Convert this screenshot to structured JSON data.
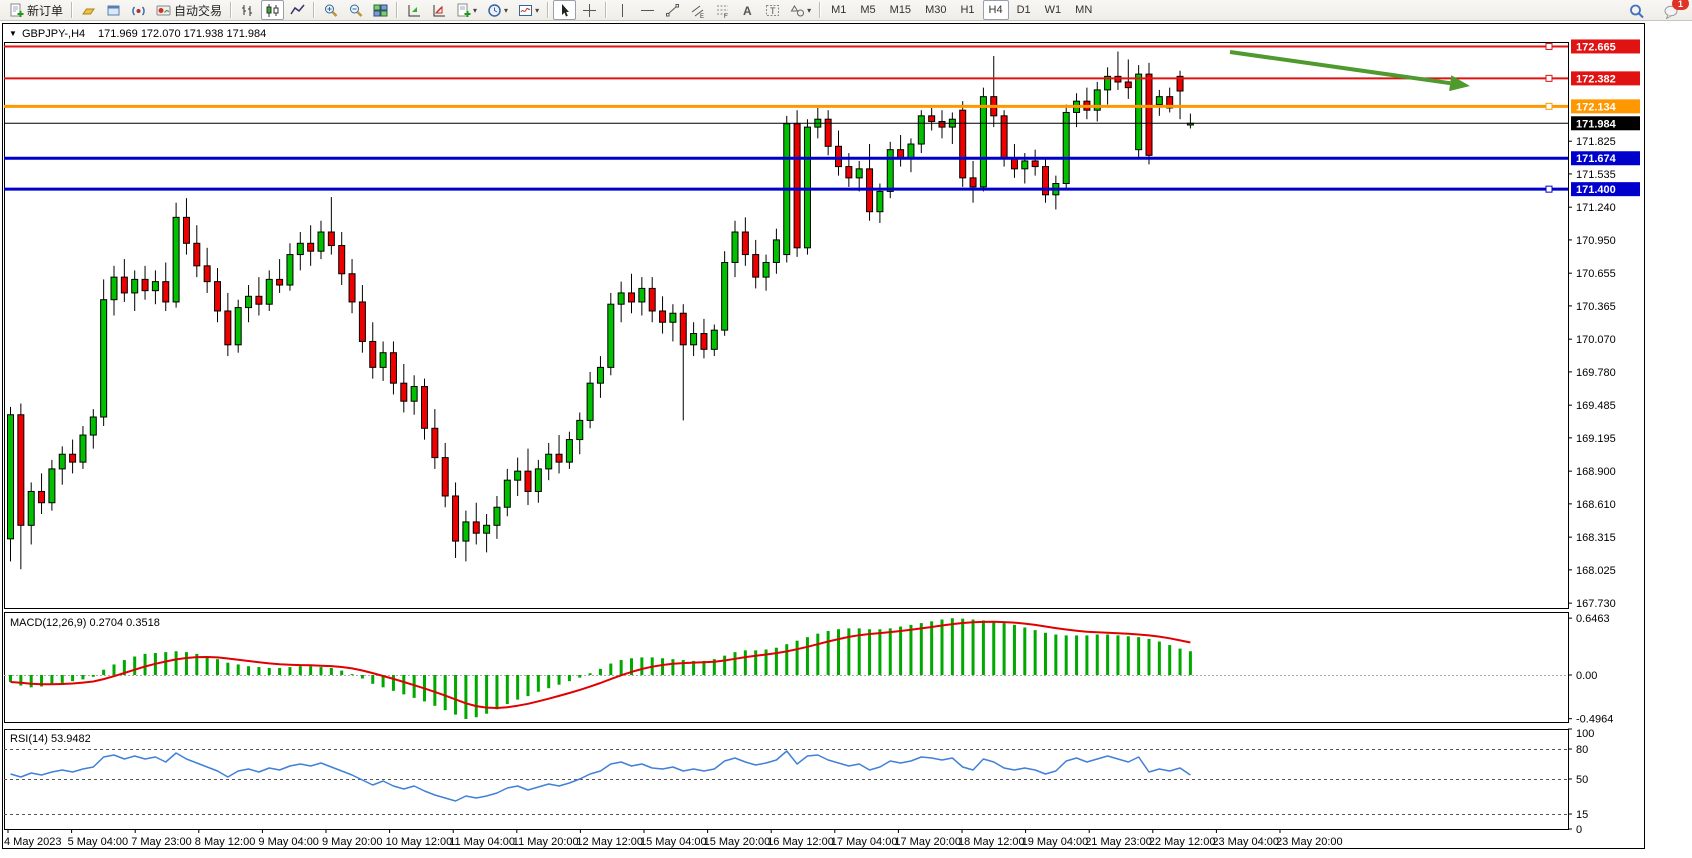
{
  "toolbar": {
    "groups": [
      [
        {
          "icon": "new-order",
          "label": "新订单"
        }
      ],
      [
        {
          "icon": "market-watch"
        },
        {
          "icon": "data-window"
        },
        {
          "icon": "navigator"
        },
        {
          "icon": "autotrade",
          "label": "自动交易"
        }
      ],
      [
        {
          "icon": "bar-chart"
        },
        {
          "icon": "candle-chart",
          "active": true
        },
        {
          "icon": "line-chart"
        }
      ],
      [
        {
          "icon": "zoom-in"
        },
        {
          "icon": "zoom-out"
        },
        {
          "icon": "tile-windows"
        }
      ],
      [
        {
          "icon": "indicator-add"
        },
        {
          "icon": "indicator-remove"
        },
        {
          "icon": "template-new",
          "dd": true
        },
        {
          "icon": "period",
          "dd": true
        },
        {
          "icon": "template",
          "dd": true
        }
      ],
      [
        {
          "icon": "cursor",
          "active": true
        },
        {
          "icon": "crosshair"
        }
      ],
      [
        {
          "icon": "vline"
        },
        {
          "icon": "hline"
        },
        {
          "icon": "trendline"
        },
        {
          "icon": "channel"
        },
        {
          "icon": "fibonacci"
        },
        {
          "icon": "text"
        },
        {
          "icon": "text-label"
        },
        {
          "icon": "shapes",
          "dd": true
        }
      ],
      [
        {
          "tf": "M1"
        },
        {
          "tf": "M5"
        },
        {
          "tf": "M15"
        },
        {
          "tf": "M30"
        },
        {
          "tf": "H1"
        },
        {
          "tf": "H4",
          "active": true
        },
        {
          "tf": "D1"
        },
        {
          "tf": "W1"
        },
        {
          "tf": "MN"
        }
      ]
    ],
    "right": [
      {
        "icon": "search"
      },
      {
        "icon": "chat",
        "badge": "1"
      }
    ]
  },
  "window": {
    "symbol_period": "GBPJPY-,H4",
    "ohlc_text": "171.969 172.070 171.938 171.984"
  },
  "macd_panel": {
    "label": "MACD(12,26,9) 0.2704 0.3518",
    "axis": [
      0.6463,
      0,
      -0.4964
    ],
    "axis_labels": [
      "0.6463",
      "0.00",
      "-0.4964"
    ]
  },
  "rsi_panel": {
    "label": "RSI(14) 53.9482",
    "axis": [
      100,
      80,
      50,
      15,
      0
    ],
    "dashed": [
      80,
      50,
      15
    ]
  },
  "price_axis_ticks": [
    "171.825",
    "171.535",
    "171.240",
    "170.950",
    "170.655",
    "170.365",
    "170.070",
    "169.780",
    "169.485",
    "169.195",
    "168.900",
    "168.610",
    "168.315",
    "168.025",
    "167.730"
  ],
  "time_axis_labels": [
    "4 May 2023",
    "5 May 04:00",
    "7 May 23:00",
    "8 May 12:00",
    "9 May 04:00",
    "9 May 20:00",
    "10 May 12:00",
    "11 May 04:00",
    "11 May 20:00",
    "12 May 12:00",
    "15 May 04:00",
    "15 May 20:00",
    "16 May 12:00",
    "17 May 04:00",
    "17 May 20:00",
    "18 May 12:00",
    "19 May 04:00",
    "21 May 23:00",
    "22 May 12:00",
    "23 May 04:00",
    "23 May 20:00"
  ],
  "levels": [
    {
      "price": 172.665,
      "label": "172.665",
      "color": "#e01212",
      "width": 2,
      "handle": true
    },
    {
      "price": 172.382,
      "label": "172.382",
      "color": "#e01212",
      "width": 2,
      "handle": true
    },
    {
      "price": 172.134,
      "label": "172.134",
      "color": "#ff9800",
      "width": 3,
      "handle": true
    },
    {
      "price": 171.674,
      "label": "171.674",
      "color": "#0000cc",
      "width": 3,
      "handle": false
    },
    {
      "price": 171.4,
      "label": "171.400",
      "color": "#0000cc",
      "width": 3,
      "handle": true
    }
  ],
  "current_price": {
    "value": 171.984,
    "label": "171.984",
    "color": "#000000"
  },
  "annotation_arrow": {
    "from": [
      1230,
      52
    ],
    "to": [
      1470,
      86
    ],
    "color": "#4e9a2e"
  },
  "colors": {
    "up": "#00c000",
    "down": "#ee0000",
    "wick": "#000000",
    "macd_hist": "#00a800",
    "macd_signal": "#e00000",
    "rsi_line": "#4080d8"
  },
  "chart_data": {
    "type": "candlestick",
    "symbol": "GBPJPY-",
    "period": "H4",
    "title": "GBPJPY-,H4 171.969 172.070 171.938 171.984",
    "last_ohlc": {
      "open": 171.969,
      "high": 172.07,
      "low": 171.938,
      "close": 171.984
    },
    "price_range": [
      167.73,
      172.705
    ],
    "legend_position": "none",
    "grid": "off",
    "candles": [
      [
        168.3,
        169.47,
        168.1,
        169.4
      ],
      [
        169.4,
        169.5,
        168.03,
        168.42
      ],
      [
        168.42,
        168.8,
        168.25,
        168.72
      ],
      [
        168.72,
        168.88,
        168.52,
        168.62
      ],
      [
        168.62,
        169.0,
        168.55,
        168.92
      ],
      [
        168.92,
        169.12,
        168.78,
        169.05
      ],
      [
        169.05,
        169.18,
        168.88,
        168.98
      ],
      [
        168.98,
        169.3,
        168.92,
        169.22
      ],
      [
        169.22,
        169.45,
        169.1,
        169.38
      ],
      [
        169.38,
        170.6,
        169.3,
        170.42
      ],
      [
        170.42,
        170.72,
        170.28,
        170.62
      ],
      [
        170.62,
        170.78,
        170.4,
        170.48
      ],
      [
        170.48,
        170.68,
        170.32,
        170.6
      ],
      [
        170.6,
        170.72,
        170.42,
        170.5
      ],
      [
        170.5,
        170.68,
        170.38,
        170.58
      ],
      [
        170.58,
        170.75,
        170.32,
        170.4
      ],
      [
        170.4,
        171.28,
        170.35,
        171.15
      ],
      [
        171.15,
        171.32,
        170.82,
        170.92
      ],
      [
        170.92,
        171.08,
        170.62,
        170.72
      ],
      [
        170.72,
        170.88,
        170.48,
        170.58
      ],
      [
        170.58,
        170.7,
        170.22,
        170.32
      ],
      [
        170.32,
        170.48,
        169.92,
        170.02
      ],
      [
        170.02,
        170.42,
        169.95,
        170.35
      ],
      [
        170.35,
        170.55,
        170.22,
        170.45
      ],
      [
        170.45,
        170.62,
        170.28,
        170.38
      ],
      [
        170.38,
        170.68,
        170.32,
        170.6
      ],
      [
        170.6,
        170.78,
        170.48,
        170.55
      ],
      [
        170.55,
        170.92,
        170.5,
        170.82
      ],
      [
        170.82,
        171.02,
        170.68,
        170.92
      ],
      [
        170.92,
        171.08,
        170.72,
        170.85
      ],
      [
        170.85,
        171.12,
        170.78,
        171.02
      ],
      [
        171.02,
        171.33,
        170.82,
        170.9
      ],
      [
        170.9,
        171.02,
        170.55,
        170.65
      ],
      [
        170.65,
        170.78,
        170.3,
        170.4
      ],
      [
        170.4,
        170.55,
        169.95,
        170.05
      ],
      [
        170.05,
        170.22,
        169.72,
        169.82
      ],
      [
        169.82,
        170.05,
        169.7,
        169.95
      ],
      [
        169.95,
        170.05,
        169.58,
        169.68
      ],
      [
        169.68,
        169.85,
        169.42,
        169.52
      ],
      [
        169.52,
        169.75,
        169.4,
        169.65
      ],
      [
        169.65,
        169.72,
        169.18,
        169.28
      ],
      [
        169.28,
        169.45,
        168.92,
        169.02
      ],
      [
        169.02,
        169.15,
        168.58,
        168.68
      ],
      [
        168.68,
        168.8,
        168.13,
        168.28
      ],
      [
        168.28,
        168.55,
        168.1,
        168.45
      ],
      [
        168.45,
        168.62,
        168.25,
        168.35
      ],
      [
        168.35,
        168.52,
        168.18,
        168.42
      ],
      [
        168.42,
        168.68,
        168.3,
        168.58
      ],
      [
        168.58,
        168.92,
        168.5,
        168.82
      ],
      [
        168.82,
        169.02,
        168.68,
        168.9
      ],
      [
        168.9,
        169.1,
        168.6,
        168.72
      ],
      [
        168.72,
        169.0,
        168.62,
        168.92
      ],
      [
        168.92,
        169.15,
        168.82,
        169.05
      ],
      [
        169.05,
        169.22,
        168.88,
        168.98
      ],
      [
        168.98,
        169.25,
        168.92,
        169.18
      ],
      [
        169.18,
        169.42,
        169.05,
        169.35
      ],
      [
        169.35,
        169.78,
        169.28,
        169.68
      ],
      [
        169.68,
        169.92,
        169.55,
        169.82
      ],
      [
        169.82,
        170.48,
        169.75,
        170.38
      ],
      [
        170.38,
        170.58,
        170.22,
        170.48
      ],
      [
        170.48,
        170.65,
        170.3,
        170.4
      ],
      [
        170.4,
        170.62,
        170.28,
        170.52
      ],
      [
        170.52,
        170.62,
        170.22,
        170.32
      ],
      [
        170.32,
        170.45,
        170.12,
        170.22
      ],
      [
        170.22,
        170.38,
        170.05,
        170.3
      ],
      [
        170.3,
        170.38,
        169.35,
        170.02
      ],
      [
        170.02,
        170.22,
        169.92,
        170.12
      ],
      [
        170.12,
        170.25,
        169.9,
        169.98
      ],
      [
        169.98,
        170.2,
        169.92,
        170.15
      ],
      [
        170.15,
        170.85,
        170.1,
        170.75
      ],
      [
        170.75,
        171.12,
        170.62,
        171.02
      ],
      [
        171.02,
        171.15,
        170.72,
        170.82
      ],
      [
        170.82,
        170.95,
        170.52,
        170.62
      ],
      [
        170.62,
        170.82,
        170.5,
        170.75
      ],
      [
        170.75,
        171.05,
        170.65,
        170.95
      ],
      [
        170.82,
        172.05,
        170.75,
        171.98
      ],
      [
        171.98,
        172.1,
        170.8,
        170.88
      ],
      [
        170.88,
        172.02,
        170.82,
        171.95
      ],
      [
        171.95,
        172.12,
        171.85,
        172.02
      ],
      [
        172.02,
        172.1,
        171.7,
        171.78
      ],
      [
        171.78,
        171.92,
        171.52,
        171.6
      ],
      [
        171.6,
        171.72,
        171.42,
        171.5
      ],
      [
        171.5,
        171.65,
        171.38,
        171.58
      ],
      [
        171.58,
        171.8,
        171.12,
        171.2
      ],
      [
        171.2,
        171.45,
        171.1,
        171.38
      ],
      [
        171.38,
        171.82,
        171.32,
        171.75
      ],
      [
        171.75,
        171.88,
        171.6,
        171.68
      ],
      [
        171.68,
        171.85,
        171.55,
        171.8
      ],
      [
        171.8,
        172.1,
        171.72,
        172.05
      ],
      [
        172.05,
        172.12,
        171.92,
        172.0
      ],
      [
        172.0,
        172.1,
        171.85,
        171.95
      ],
      [
        171.95,
        172.08,
        171.8,
        172.02
      ],
      [
        172.1,
        172.18,
        171.42,
        171.5
      ],
      [
        171.5,
        171.65,
        171.28,
        171.42
      ],
      [
        171.42,
        172.3,
        171.38,
        172.22
      ],
      [
        172.22,
        172.58,
        171.95,
        172.05
      ],
      [
        172.05,
        172.1,
        171.6,
        171.68
      ],
      [
        171.68,
        171.8,
        171.5,
        171.58
      ],
      [
        171.58,
        171.72,
        171.45,
        171.65
      ],
      [
        171.65,
        171.75,
        171.52,
        171.6
      ],
      [
        171.6,
        171.68,
        171.28,
        171.35
      ],
      [
        171.35,
        171.52,
        171.22,
        171.45
      ],
      [
        171.45,
        172.15,
        171.4,
        172.08
      ],
      [
        172.08,
        172.25,
        171.95,
        172.18
      ],
      [
        172.18,
        172.3,
        172.02,
        172.1
      ],
      [
        172.1,
        172.35,
        172.0,
        172.28
      ],
      [
        172.28,
        172.48,
        172.15,
        172.4
      ],
      [
        172.4,
        172.62,
        172.28,
        172.35
      ],
      [
        172.35,
        172.55,
        172.2,
        172.3
      ],
      [
        171.75,
        172.5,
        171.68,
        172.42
      ],
      [
        172.42,
        172.52,
        171.62,
        171.7
      ],
      [
        172.15,
        172.28,
        172.05,
        172.22
      ],
      [
        172.22,
        172.3,
        172.08,
        172.12
      ],
      [
        172.4,
        172.45,
        172.02,
        172.27
      ],
      [
        171.969,
        172.07,
        171.938,
        171.984
      ]
    ],
    "indicators": [
      {
        "type": "macd",
        "label": "MACD(12,26,9)",
        "current_macd": 0.2704,
        "current_signal": 0.3518,
        "range": [
          -0.4964,
          0.6463
        ],
        "histogram": [
          -0.08,
          -0.12,
          -0.14,
          -0.13,
          -0.11,
          -0.09,
          -0.07,
          -0.05,
          -0.02,
          0.06,
          0.12,
          0.17,
          0.21,
          0.24,
          0.25,
          0.26,
          0.27,
          0.26,
          0.24,
          0.21,
          0.18,
          0.14,
          0.12,
          0.1,
          0.09,
          0.08,
          0.08,
          0.09,
          0.1,
          0.1,
          0.09,
          0.08,
          0.05,
          0.01,
          -0.04,
          -0.1,
          -0.14,
          -0.18,
          -0.22,
          -0.26,
          -0.3,
          -0.35,
          -0.4,
          -0.45,
          -0.5,
          -0.48,
          -0.44,
          -0.39,
          -0.33,
          -0.28,
          -0.24,
          -0.19,
          -0.15,
          -0.11,
          -0.07,
          -0.03,
          0.02,
          0.07,
          0.13,
          0.17,
          0.19,
          0.2,
          0.2,
          0.19,
          0.18,
          0.17,
          0.16,
          0.16,
          0.18,
          0.22,
          0.26,
          0.28,
          0.28,
          0.29,
          0.31,
          0.35,
          0.39,
          0.43,
          0.47,
          0.5,
          0.52,
          0.53,
          0.53,
          0.52,
          0.52,
          0.53,
          0.55,
          0.57,
          0.59,
          0.61,
          0.63,
          0.645,
          0.64,
          0.63,
          0.62,
          0.61,
          0.59,
          0.57,
          0.54,
          0.51,
          0.48,
          0.46,
          0.45,
          0.45,
          0.45,
          0.46,
          0.46,
          0.45,
          0.44,
          0.43,
          0.41,
          0.38,
          0.34,
          0.3,
          0.27
        ],
        "signal_derivation": "EMA(9) of histogram, drawn as red line"
      },
      {
        "type": "rsi",
        "label": "RSI(14)",
        "current": 53.9482,
        "levels": [
          80,
          50,
          15
        ],
        "values": [
          55,
          52,
          56,
          54,
          57,
          59,
          57,
          60,
          62,
          72,
          74,
          70,
          73,
          70,
          72,
          67,
          76,
          70,
          66,
          62,
          58,
          52,
          58,
          60,
          57,
          61,
          59,
          63,
          65,
          63,
          66,
          62,
          58,
          54,
          49,
          44,
          48,
          43,
          40,
          43,
          38,
          34,
          31,
          28,
          33,
          31,
          33,
          36,
          41,
          43,
          39,
          42,
          45,
          43,
          46,
          50,
          55,
          58,
          65,
          67,
          63,
          65,
          61,
          60,
          62,
          58,
          60,
          58,
          60,
          68,
          71,
          67,
          64,
          66,
          69,
          78,
          65,
          73,
          74,
          69,
          66,
          63,
          65,
          59,
          62,
          68,
          66,
          68,
          72,
          71,
          69,
          71,
          62,
          59,
          70,
          67,
          61,
          59,
          61,
          59,
          55,
          58,
          68,
          71,
          67,
          70,
          73,
          70,
          67,
          72,
          57,
          60,
          58,
          61,
          54
        ]
      }
    ]
  }
}
